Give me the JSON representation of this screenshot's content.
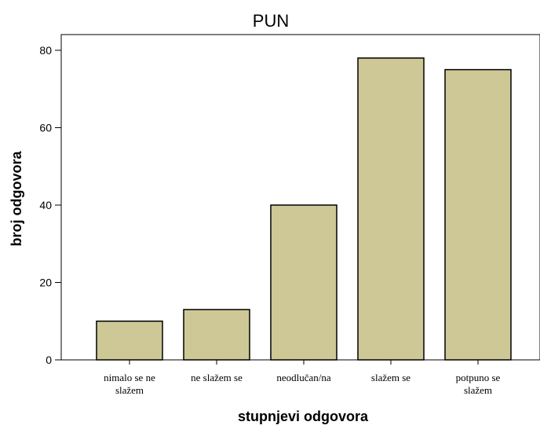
{
  "chart_data": {
    "type": "bar",
    "title": "PUN",
    "xlabel": "stupnjevi odgovora",
    "ylabel": "broj odgovora",
    "categories": [
      [
        "nimalo se ne",
        "slažem"
      ],
      [
        "ne slažem se"
      ],
      [
        "neodlučan/na"
      ],
      [
        "slažem se"
      ],
      [
        "potpuno se",
        "slažem"
      ]
    ],
    "values": [
      10,
      13,
      40,
      78,
      75
    ],
    "yticks": [
      0,
      20,
      40,
      60,
      80
    ],
    "ylim": [
      0,
      80
    ],
    "colors": {
      "bar": "#cdc896",
      "outline": "#000000"
    }
  }
}
